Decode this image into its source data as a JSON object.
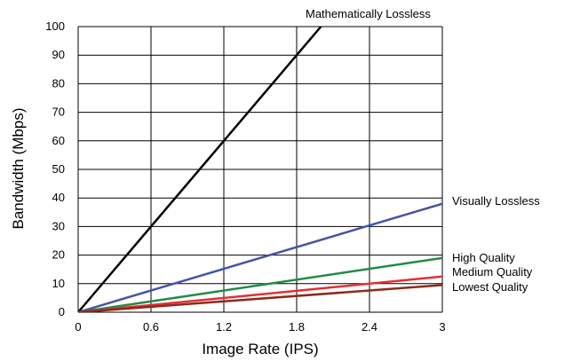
{
  "chart_data": {
    "type": "line",
    "title": "",
    "xlabel": "Image Rate (IPS)",
    "ylabel": "Bandwidth (Mbps)",
    "xlim": [
      0,
      3
    ],
    "ylim": [
      0,
      100
    ],
    "x_ticks": [
      "0",
      "0.6",
      "1.2",
      "1.8",
      "2.4",
      "3"
    ],
    "y_ticks": [
      "0",
      "10",
      "20",
      "30",
      "40",
      "50",
      "60",
      "70",
      "80",
      "90",
      "100"
    ],
    "grid": true,
    "series": [
      {
        "name": "Mathematically Lossless",
        "color": "#000000",
        "x": [
          0,
          2.0
        ],
        "y": [
          0,
          100
        ]
      },
      {
        "name": "Visually Lossless",
        "color": "#4555a3",
        "x": [
          0,
          3
        ],
        "y": [
          0,
          38
        ]
      },
      {
        "name": "High Quality",
        "color": "#218b47",
        "x": [
          0,
          3
        ],
        "y": [
          0,
          19
        ]
      },
      {
        "name": "Medium Quality",
        "color": "#e32f35",
        "x": [
          0,
          3
        ],
        "y": [
          0,
          12.5
        ]
      },
      {
        "name": "Lowest Quality",
        "color": "#8b2a1a",
        "x": [
          0,
          3
        ],
        "y": [
          0,
          9.5
        ]
      }
    ]
  }
}
